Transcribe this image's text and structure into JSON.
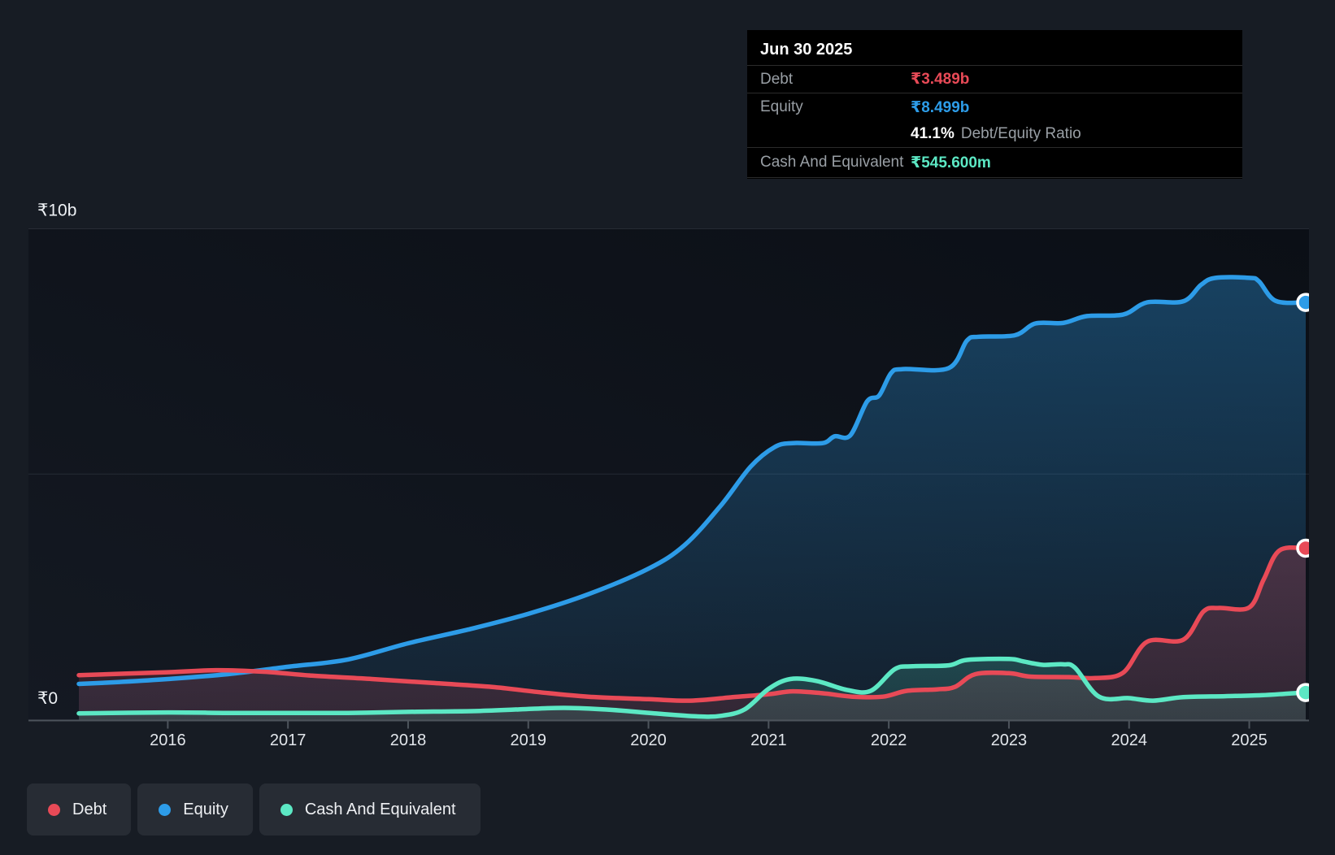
{
  "chart_data": {
    "type": "area",
    "title": "",
    "x_domain": [
      2015.26,
      2025.47
    ],
    "ylim": [
      0,
      10
    ],
    "grid": "horizontal-only",
    "x_ticks": [
      "2016",
      "2017",
      "2018",
      "2019",
      "2020",
      "2021",
      "2022",
      "2023",
      "2024",
      "2025"
    ],
    "y_gridlines": [
      {
        "value": 10,
        "label": "₹10b"
      },
      {
        "value": 5,
        "label": ""
      },
      {
        "value": 0,
        "label": "₹0"
      }
    ],
    "series": [
      {
        "id": "equity",
        "name": "Equity",
        "color": "#2d9ce8",
        "points": [
          [
            2015.26,
            0.72
          ],
          [
            2015.6,
            0.76
          ],
          [
            2016,
            0.82
          ],
          [
            2016.5,
            0.92
          ],
          [
            2017,
            1.07
          ],
          [
            2017.5,
            1.22
          ],
          [
            2018,
            1.55
          ],
          [
            2018.5,
            1.83
          ],
          [
            2019,
            2.15
          ],
          [
            2019.5,
            2.55
          ],
          [
            2020,
            3.07
          ],
          [
            2020.3,
            3.55
          ],
          [
            2020.6,
            4.35
          ],
          [
            2020.85,
            5.15
          ],
          [
            2021.05,
            5.55
          ],
          [
            2021.2,
            5.63
          ],
          [
            2021.45,
            5.63
          ],
          [
            2021.55,
            5.77
          ],
          [
            2021.68,
            5.79
          ],
          [
            2021.82,
            6.48
          ],
          [
            2021.92,
            6.6
          ],
          [
            2022.02,
            7.06
          ],
          [
            2022.12,
            7.14
          ],
          [
            2022.5,
            7.16
          ],
          [
            2022.65,
            7.72
          ],
          [
            2022.75,
            7.8
          ],
          [
            2023.05,
            7.83
          ],
          [
            2023.22,
            8.07
          ],
          [
            2023.45,
            8.08
          ],
          [
            2023.65,
            8.22
          ],
          [
            2023.95,
            8.25
          ],
          [
            2024.15,
            8.5
          ],
          [
            2024.45,
            8.52
          ],
          [
            2024.6,
            8.86
          ],
          [
            2024.72,
            9.0
          ],
          [
            2025.0,
            9.0
          ],
          [
            2025.08,
            8.93
          ],
          [
            2025.22,
            8.53
          ],
          [
            2025.47,
            8.499
          ]
        ]
      },
      {
        "id": "debt",
        "name": "Debt",
        "color": "#e84a57",
        "points": [
          [
            2015.26,
            0.9
          ],
          [
            2016,
            0.96
          ],
          [
            2016.4,
            1.0
          ],
          [
            2016.8,
            0.97
          ],
          [
            2017.2,
            0.89
          ],
          [
            2017.7,
            0.82
          ],
          [
            2018.2,
            0.74
          ],
          [
            2018.7,
            0.66
          ],
          [
            2019.1,
            0.55
          ],
          [
            2019.5,
            0.46
          ],
          [
            2020,
            0.41
          ],
          [
            2020.35,
            0.38
          ],
          [
            2020.7,
            0.45
          ],
          [
            2021,
            0.51
          ],
          [
            2021.2,
            0.57
          ],
          [
            2021.45,
            0.53
          ],
          [
            2021.7,
            0.46
          ],
          [
            2021.95,
            0.46
          ],
          [
            2022.15,
            0.58
          ],
          [
            2022.4,
            0.61
          ],
          [
            2022.55,
            0.66
          ],
          [
            2022.72,
            0.92
          ],
          [
            2023,
            0.94
          ],
          [
            2023.18,
            0.87
          ],
          [
            2023.5,
            0.86
          ],
          [
            2023.72,
            0.84
          ],
          [
            2023.95,
            0.95
          ],
          [
            2024.15,
            1.58
          ],
          [
            2024.45,
            1.62
          ],
          [
            2024.62,
            2.2
          ],
          [
            2024.75,
            2.27
          ],
          [
            2025,
            2.28
          ],
          [
            2025.12,
            2.85
          ],
          [
            2025.25,
            3.44
          ],
          [
            2025.47,
            3.489
          ]
        ]
      },
      {
        "id": "cash",
        "name": "Cash And Equivalent",
        "color": "#5ce8c4",
        "points": [
          [
            2015.26,
            0.12
          ],
          [
            2016,
            0.14
          ],
          [
            2016.5,
            0.13
          ],
          [
            2017,
            0.13
          ],
          [
            2017.5,
            0.13
          ],
          [
            2018,
            0.15
          ],
          [
            2018.6,
            0.17
          ],
          [
            2019.1,
            0.22
          ],
          [
            2019.35,
            0.23
          ],
          [
            2019.7,
            0.19
          ],
          [
            2020.05,
            0.12
          ],
          [
            2020.4,
            0.06
          ],
          [
            2020.6,
            0.07
          ],
          [
            2020.8,
            0.2
          ],
          [
            2021,
            0.62
          ],
          [
            2021.18,
            0.82
          ],
          [
            2021.4,
            0.78
          ],
          [
            2021.65,
            0.6
          ],
          [
            2021.85,
            0.58
          ],
          [
            2022.05,
            1.02
          ],
          [
            2022.2,
            1.08
          ],
          [
            2022.5,
            1.1
          ],
          [
            2022.65,
            1.21
          ],
          [
            2023,
            1.23
          ],
          [
            2023.12,
            1.18
          ],
          [
            2023.28,
            1.11
          ],
          [
            2023.45,
            1.12
          ],
          [
            2023.55,
            1.05
          ],
          [
            2023.75,
            0.46
          ],
          [
            2024,
            0.43
          ],
          [
            2024.2,
            0.38
          ],
          [
            2024.45,
            0.45
          ],
          [
            2024.8,
            0.47
          ],
          [
            2025.1,
            0.49
          ],
          [
            2025.3,
            0.52
          ],
          [
            2025.47,
            0.5456
          ]
        ]
      }
    ]
  },
  "tooltip": {
    "date": "Jun 30 2025",
    "debt_label": "Debt",
    "debt_value": "₹3.489b",
    "equity_label": "Equity",
    "equity_value": "₹8.499b",
    "ratio_value": "41.1%",
    "ratio_label": "Debt/Equity Ratio",
    "cash_label": "Cash And Equivalent",
    "cash_value": "₹545.600m"
  },
  "legend": {
    "items": [
      {
        "id": "debt",
        "label": "Debt",
        "color": "#e84a57"
      },
      {
        "id": "equity",
        "label": "Equity",
        "color": "#2d9ce8"
      },
      {
        "id": "cash",
        "label": "Cash And Equivalent",
        "color": "#5ce8c4"
      }
    ]
  },
  "colors": {
    "background": "#171c24",
    "plot_top": "#0b0f16",
    "plot_bottom": "#141922",
    "axis": "#4d545c",
    "tick_label": "#e2e6eb",
    "grid": "rgba(190,200,215,0.12)"
  }
}
